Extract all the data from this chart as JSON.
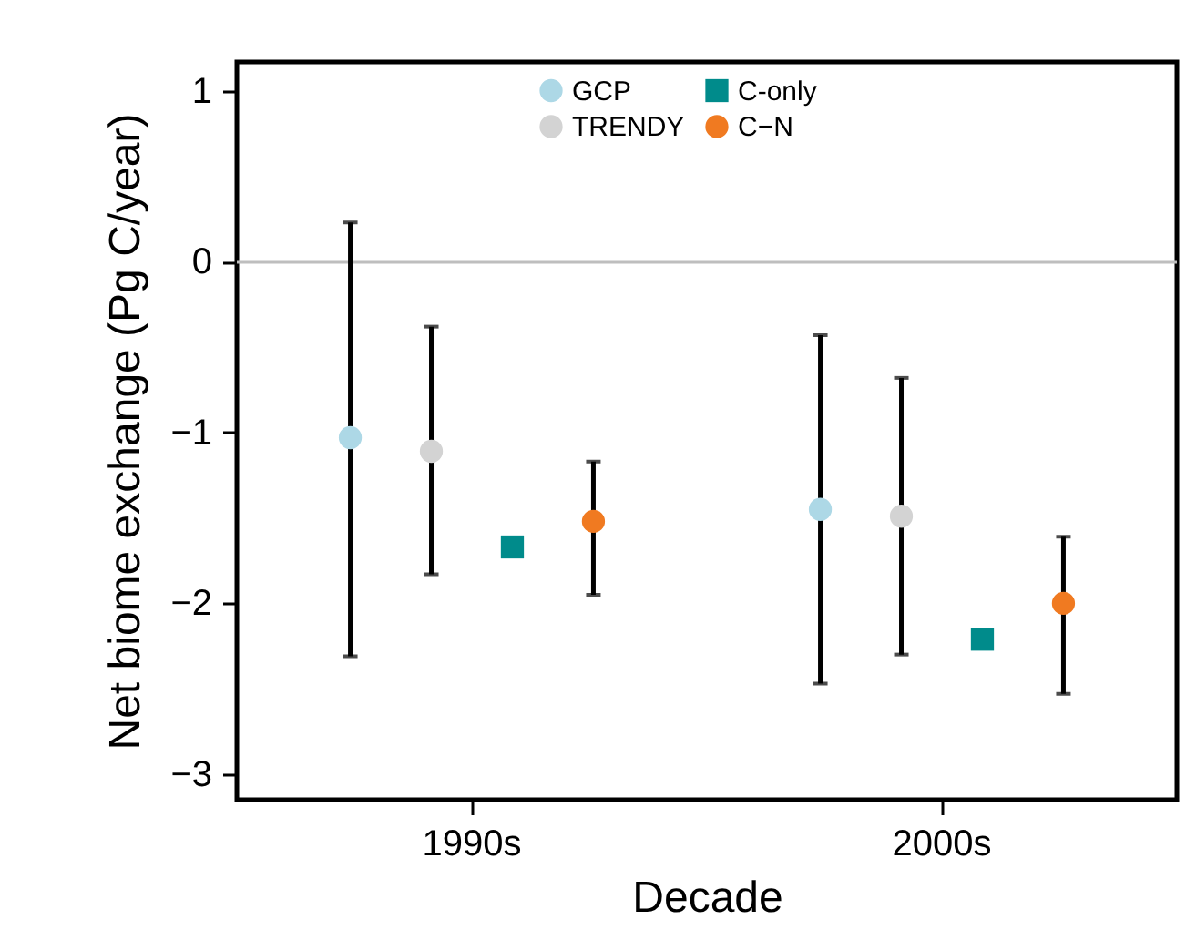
{
  "chart_data": {
    "type": "scatter",
    "xlabel": "Decade",
    "ylabel": "Net biome exchange (Pg C/year)",
    "categories": [
      "1990s",
      "2000s"
    ],
    "ylim": [
      -3.15,
      1.17
    ],
    "yticks": [
      -3,
      -2,
      -1,
      0,
      1
    ],
    "grid": false,
    "legend": "top",
    "ref_lines": [
      {
        "axis": "y",
        "value": 0,
        "color": "#bebebe"
      }
    ],
    "series": [
      {
        "name": "GCP",
        "color": "#add8e6",
        "marker": "circle",
        "values": [
          -1.03,
          -1.45
        ],
        "errors": [
          [
            -2.31,
            0.23
          ],
          [
            -2.47,
            -0.43
          ]
        ]
      },
      {
        "name": "TRENDY",
        "color": "#d3d3d3",
        "marker": "circle",
        "values": [
          -1.11,
          -1.49
        ],
        "errors": [
          [
            -1.83,
            -0.38
          ],
          [
            -2.3,
            -0.68
          ]
        ]
      },
      {
        "name": "C-only",
        "color": "#008b8b",
        "marker": "square",
        "values": [
          -1.67,
          -2.21
        ]
      },
      {
        "name": "C−N",
        "color": "#f07a21",
        "marker": "circle",
        "values": [
          -1.52,
          -2.0
        ],
        "errors": [
          [
            -1.95,
            -1.17
          ],
          [
            -2.53,
            -1.61
          ]
        ]
      }
    ]
  }
}
